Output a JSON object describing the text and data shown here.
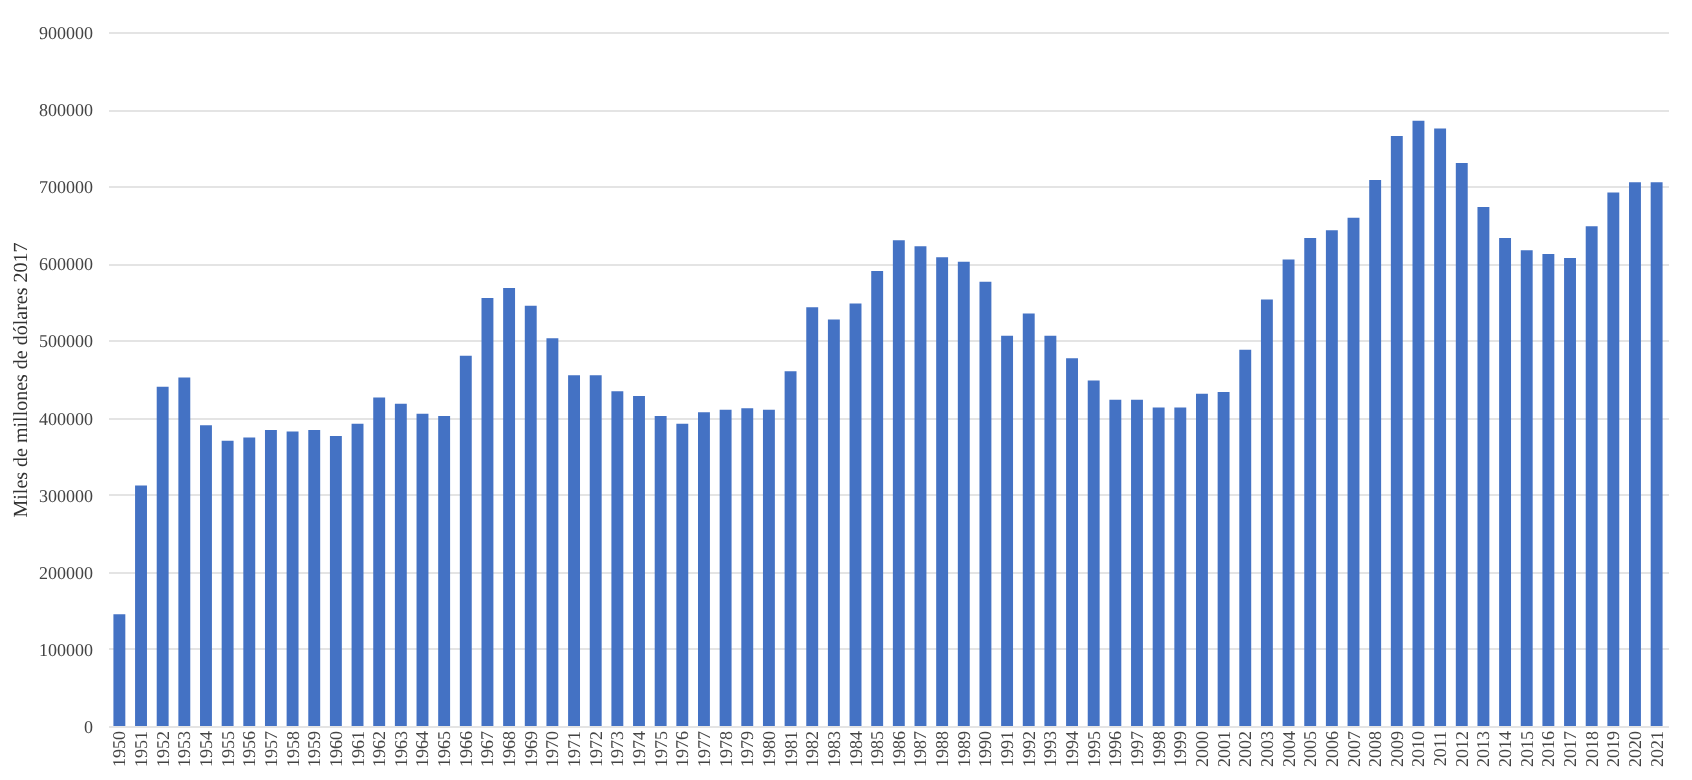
{
  "chart_data": {
    "type": "bar",
    "ylabel": "Miles de millones de dólares 2017",
    "categories": [
      "1950",
      "1951",
      "1952",
      "1953",
      "1954",
      "1955",
      "1956",
      "1957",
      "1958",
      "1959",
      "1960",
      "1961",
      "1962",
      "1963",
      "1964",
      "1965",
      "1966",
      "1967",
      "1968",
      "1969",
      "1970",
      "1971",
      "1972",
      "1973",
      "1974",
      "1975",
      "1976",
      "1977",
      "1978",
      "1979",
      "1980",
      "1981",
      "1982",
      "1983",
      "1984",
      "1985",
      "1986",
      "1987",
      "1988",
      "1989",
      "1990",
      "1991",
      "1992",
      "1993",
      "1994",
      "1995",
      "1996",
      "1997",
      "1998",
      "1999",
      "2000",
      "2001",
      "2002",
      "2003",
      "2004",
      "2005",
      "2006",
      "2007",
      "2008",
      "2009",
      "2010",
      "2011",
      "2012",
      "2013",
      "2014",
      "2015",
      "2016",
      "2017",
      "2018",
      "2019",
      "2020",
      "2021"
    ],
    "values": [
      145000,
      312000,
      440000,
      452000,
      390000,
      370000,
      374000,
      384000,
      382000,
      384000,
      376000,
      392000,
      426000,
      418000,
      405000,
      402000,
      480000,
      555000,
      568000,
      545000,
      503000,
      455000,
      455000,
      434000,
      428000,
      402000,
      392000,
      407000,
      410000,
      412000,
      410000,
      460000,
      543000,
      527000,
      548000,
      590000,
      630000,
      622000,
      608000,
      602000,
      576000,
      506000,
      535000,
      506000,
      477000,
      448000,
      423000,
      423000,
      413000,
      413000,
      431000,
      433000,
      488000,
      553000,
      605000,
      633000,
      643000,
      659000,
      708000,
      765000,
      785000,
      775000,
      730000,
      673000,
      633000,
      617000,
      612000,
      607000,
      648000,
      692000,
      705000,
      705000
    ],
    "color": "#4472c4",
    "ylim": [
      0,
      900000
    ],
    "yticks": [
      0,
      100000,
      200000,
      300000,
      400000,
      500000,
      600000,
      700000,
      800000,
      900000
    ],
    "grid": "y"
  }
}
